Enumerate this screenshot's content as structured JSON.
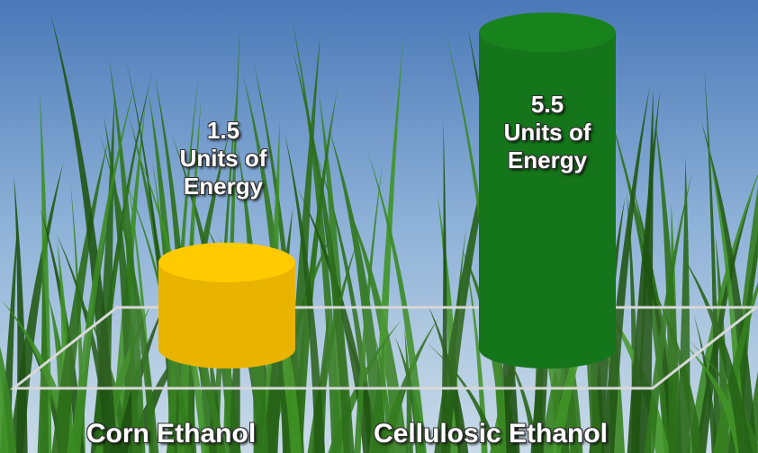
{
  "chart_data": {
    "type": "cylinder-bar",
    "categories": [
      "Corn Ethanol",
      "Cellulosic Ethanol"
    ],
    "values": [
      1.5,
      5.5
    ],
    "value_labels": [
      "1.5 Units of Energy",
      "5.5 Units of Energy"
    ],
    "colors": [
      "#e8b400",
      "#15751a"
    ]
  }
}
